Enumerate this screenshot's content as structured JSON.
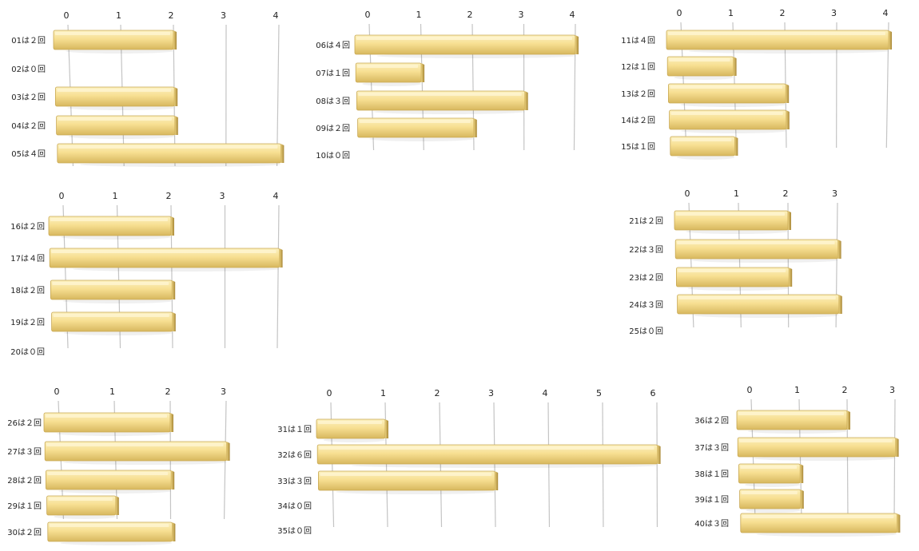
{
  "colors": {
    "bar_top": "#fbeeb4",
    "bar_mid": "#f6dc8c",
    "bar_bottom": "#d9b85a",
    "bar_end": "#b8923a",
    "grid": "#c4c4c4",
    "text": "#222222"
  },
  "chart_data": [
    {
      "type": "bar",
      "orientation": "horizontal",
      "position": "row1-left",
      "ticks": [
        "0",
        "1",
        "2",
        "3",
        "4"
      ],
      "xlim": [
        0,
        4
      ],
      "categories": [
        "01は２回",
        "02は０回",
        "03は２回",
        "04は２回",
        "05は４回"
      ],
      "values": [
        2,
        0,
        2,
        2,
        4
      ]
    },
    {
      "type": "bar",
      "orientation": "horizontal",
      "position": "row1-center",
      "ticks": [
        "0",
        "1",
        "2",
        "3",
        "4"
      ],
      "xlim": [
        0,
        4
      ],
      "categories": [
        "06は４回",
        "07は１回",
        "08は３回",
        "09は２回",
        "10は０回"
      ],
      "values": [
        4,
        1,
        3,
        2,
        0
      ]
    },
    {
      "type": "bar",
      "orientation": "horizontal",
      "position": "row1-right",
      "ticks": [
        "0",
        "1",
        "2",
        "3",
        "4"
      ],
      "xlim": [
        0,
        4
      ],
      "categories": [
        "11は４回",
        "12は１回",
        "13は２回",
        "14は２回",
        "15は１回"
      ],
      "values": [
        4,
        1,
        2,
        2,
        1
      ]
    },
    {
      "type": "bar",
      "orientation": "horizontal",
      "position": "row2-left",
      "ticks": [
        "0",
        "1",
        "2",
        "3",
        "4"
      ],
      "xlim": [
        0,
        4
      ],
      "categories": [
        "16は２回",
        "17は４回",
        "18は２回",
        "19は２回",
        "20は０回"
      ],
      "values": [
        2,
        4,
        2,
        2,
        0
      ]
    },
    {
      "type": "bar",
      "orientation": "horizontal",
      "position": "row2-right",
      "ticks": [
        "0",
        "1",
        "2",
        "3"
      ],
      "xlim": [
        0,
        3
      ],
      "categories": [
        "21は２回",
        "22は３回",
        "23は２回",
        "24は３回",
        "25は０回"
      ],
      "values": [
        2,
        3,
        2,
        3,
        0
      ]
    },
    {
      "type": "bar",
      "orientation": "horizontal",
      "position": "row3-left",
      "ticks": [
        "0",
        "1",
        "2",
        "3"
      ],
      "xlim": [
        0,
        3
      ],
      "categories": [
        "26は２回",
        "27は３回",
        "28は２回",
        "29は１回",
        "30は２回"
      ],
      "values": [
        2,
        3,
        2,
        1,
        2
      ]
    },
    {
      "type": "bar",
      "orientation": "horizontal",
      "position": "row3-center",
      "ticks": [
        "0",
        "1",
        "2",
        "3",
        "4",
        "5",
        "6"
      ],
      "xlim": [
        0,
        6
      ],
      "categories": [
        "31は１回",
        "32は６回",
        "33は３回",
        "34は０回",
        "35は０回"
      ],
      "values": [
        1,
        6,
        3,
        0,
        0
      ]
    },
    {
      "type": "bar",
      "orientation": "horizontal",
      "position": "row3-right",
      "ticks": [
        "0",
        "1",
        "2",
        "3"
      ],
      "xlim": [
        0,
        3
      ],
      "categories": [
        "36は２回",
        "37は３回",
        "38は１回",
        "39は１回",
        "40は３回"
      ],
      "values": [
        2,
        3,
        1,
        1,
        3
      ]
    }
  ]
}
